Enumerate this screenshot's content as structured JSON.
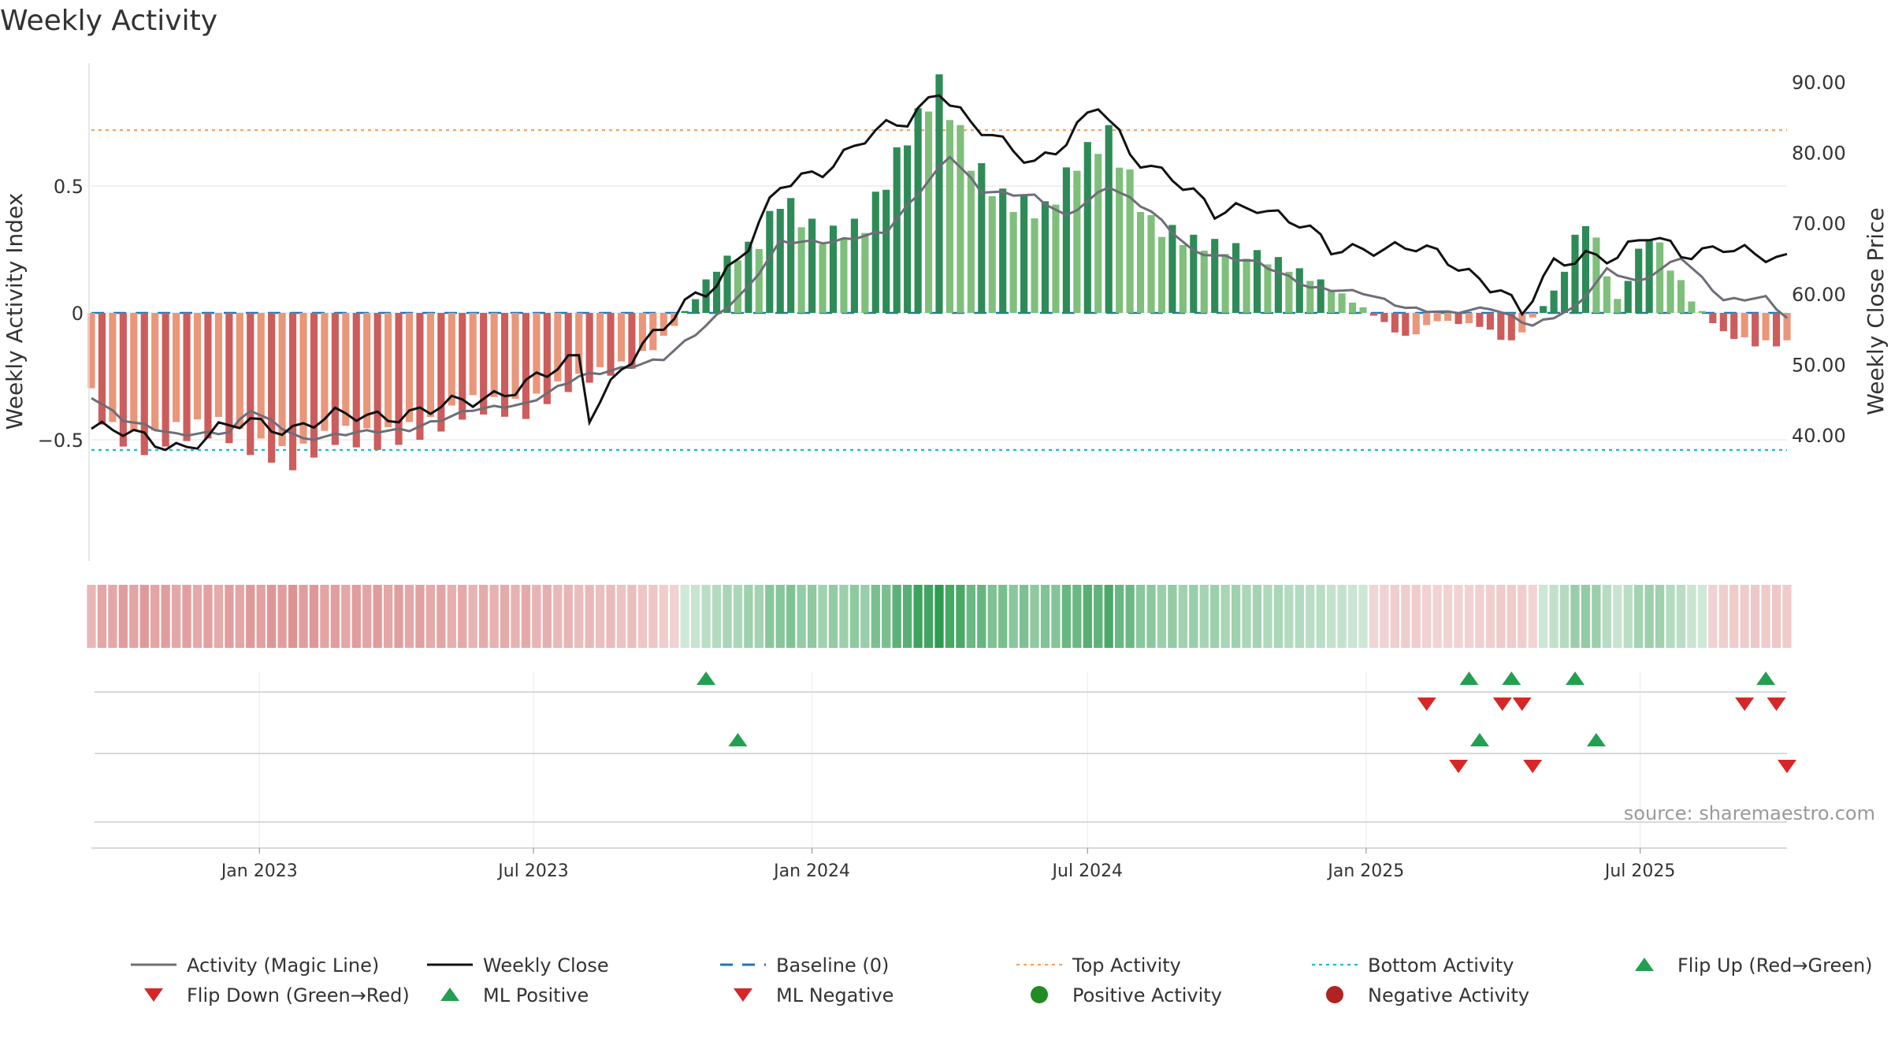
{
  "title": "Weekly Activity",
  "source": "source: sharemaestro.com",
  "colors": {
    "pos_dark": "#2e8b57",
    "pos_light": "#7fbf7b",
    "neg_dark": "#cd5c5c",
    "neg_light": "#e9967a",
    "magic_line": "#6e6e78",
    "close_line": "#111111",
    "baseline": "#1f77b4",
    "top_line": "#f4a460",
    "bottom_line": "#17becf",
    "marker_up": "#22a050",
    "marker_down": "#d62728",
    "pos_dot": "#228b22",
    "neg_dot": "#b22222"
  },
  "chart_data": {
    "type": "bar",
    "title": "Weekly Activity",
    "ylabel": "Weekly Activity Index",
    "y2label": "Weekly Close Price",
    "ylim": [
      -0.97,
      1.0
    ],
    "y2lim": [
      35.0,
      92.0
    ],
    "yticks": [
      {
        "v": 0.5,
        "label": "0.5"
      },
      {
        "v": 0,
        "label": "0"
      },
      {
        "v": -0.5,
        "label": "−0.5"
      }
    ],
    "y2ticks": [
      "90.00",
      "80.00",
      "70.00",
      "60.00",
      "50.00",
      "40.00"
    ],
    "x_start": "2022-09-12",
    "x_end": "2025-10-06",
    "xticks": [
      {
        "date": "2023-01-01",
        "label": "Jan 2023"
      },
      {
        "date": "2023-07-01",
        "label": "Jul 2023"
      },
      {
        "date": "2024-01-01",
        "label": "Jan 2024"
      },
      {
        "date": "2024-07-01",
        "label": "Jul 2024"
      },
      {
        "date": "2025-01-01",
        "label": "Jan 2025"
      },
      {
        "date": "2025-07-01",
        "label": "Jul 2025"
      }
    ],
    "top_activity": 0.72,
    "bottom_activity": -0.54,
    "series": [
      {
        "name": "Weekly Activity Index",
        "kind": "bar",
        "anchors": [
          [
            "2022-09-12",
            -0.33
          ],
          [
            "2022-09-26",
            -0.47
          ],
          [
            "2022-10-17",
            -0.52
          ],
          [
            "2022-11-07",
            -0.47
          ],
          [
            "2022-12-05",
            -0.45
          ],
          [
            "2022-12-26",
            -0.52
          ],
          [
            "2023-01-23",
            -0.58
          ],
          [
            "2023-02-20",
            -0.48
          ],
          [
            "2023-03-20",
            -0.5
          ],
          [
            "2023-04-24",
            -0.45
          ],
          [
            "2023-05-22",
            -0.36
          ],
          [
            "2023-06-26",
            -0.38
          ],
          [
            "2023-07-17",
            -0.3
          ],
          [
            "2023-08-07",
            -0.25
          ],
          [
            "2023-09-04",
            -0.2
          ],
          [
            "2023-09-25",
            -0.1
          ],
          [
            "2023-10-16",
            0.06
          ],
          [
            "2023-10-30",
            0.18
          ],
          [
            "2023-11-27",
            0.28
          ],
          [
            "2023-12-11",
            0.45
          ],
          [
            "2024-01-08",
            0.3
          ],
          [
            "2024-02-05",
            0.35
          ],
          [
            "2024-03-04",
            0.7
          ],
          [
            "2024-03-25",
            0.9
          ],
          [
            "2024-04-15",
            0.6
          ],
          [
            "2024-05-06",
            0.45
          ],
          [
            "2024-06-03",
            0.4
          ],
          [
            "2024-06-24",
            0.6
          ],
          [
            "2024-07-15",
            0.7
          ],
          [
            "2024-08-12",
            0.35
          ],
          [
            "2024-09-09",
            0.28
          ],
          [
            "2024-10-07",
            0.25
          ],
          [
            "2024-11-04",
            0.2
          ],
          [
            "2024-12-02",
            0.12
          ],
          [
            "2024-12-30",
            0.02
          ],
          [
            "2025-01-27",
            -0.1
          ],
          [
            "2025-02-17",
            -0.03
          ],
          [
            "2025-03-17",
            -0.05
          ],
          [
            "2025-04-07",
            -0.12
          ],
          [
            "2025-05-05",
            0.08
          ],
          [
            "2025-05-26",
            0.38
          ],
          [
            "2025-06-16",
            0.05
          ],
          [
            "2025-07-07",
            0.32
          ],
          [
            "2025-08-04",
            0.05
          ],
          [
            "2025-08-25",
            -0.08
          ],
          [
            "2025-09-15",
            -0.12
          ],
          [
            "2025-10-06",
            -0.12
          ]
        ]
      },
      {
        "name": "Activity (Magic Line)",
        "kind": "line",
        "anchors": [
          [
            "2022-09-12",
            -0.33
          ],
          [
            "2022-10-03",
            -0.42
          ],
          [
            "2022-11-07",
            -0.48
          ],
          [
            "2022-12-12",
            -0.47
          ],
          [
            "2022-12-26",
            -0.38
          ],
          [
            "2023-01-30",
            -0.5
          ],
          [
            "2023-03-06",
            -0.47
          ],
          [
            "2023-04-10",
            -0.46
          ],
          [
            "2023-05-22",
            -0.38
          ],
          [
            "2023-06-26",
            -0.36
          ],
          [
            "2023-07-31",
            -0.25
          ],
          [
            "2023-08-28",
            -0.22
          ],
          [
            "2023-09-25",
            -0.18
          ],
          [
            "2023-10-23",
            -0.05
          ],
          [
            "2023-11-20",
            0.1
          ],
          [
            "2023-12-11",
            0.28
          ],
          [
            "2024-01-15",
            0.28
          ],
          [
            "2024-02-19",
            0.32
          ],
          [
            "2024-04-01",
            0.62
          ],
          [
            "2024-04-22",
            0.48
          ],
          [
            "2024-05-27",
            0.46
          ],
          [
            "2024-06-17",
            0.38
          ],
          [
            "2024-07-15",
            0.5
          ],
          [
            "2024-08-12",
            0.4
          ],
          [
            "2024-09-09",
            0.24
          ],
          [
            "2024-10-21",
            0.2
          ],
          [
            "2024-11-25",
            0.1
          ],
          [
            "2024-12-30",
            0.08
          ],
          [
            "2025-01-27",
            0.02
          ],
          [
            "2025-02-24",
            0.0
          ],
          [
            "2025-03-24",
            0.02
          ],
          [
            "2025-04-21",
            -0.05
          ],
          [
            "2025-05-19",
            0.02
          ],
          [
            "2025-06-09",
            0.17
          ],
          [
            "2025-06-30",
            0.12
          ],
          [
            "2025-07-28",
            0.22
          ],
          [
            "2025-08-25",
            0.05
          ],
          [
            "2025-09-22",
            0.06
          ],
          [
            "2025-10-06",
            -0.02
          ]
        ]
      },
      {
        "name": "Weekly Close",
        "kind": "line",
        "axis": "right",
        "anchors": [
          [
            "2022-09-12",
            41.0
          ],
          [
            "2022-10-10",
            40.0
          ],
          [
            "2022-11-14",
            38.5
          ],
          [
            "2022-12-05",
            40.5
          ],
          [
            "2022-12-26",
            42.0
          ],
          [
            "2023-01-23",
            41.2
          ],
          [
            "2023-02-20",
            42.5
          ],
          [
            "2023-03-20",
            43.0
          ],
          [
            "2023-04-24",
            43.5
          ],
          [
            "2023-05-22",
            45.0
          ],
          [
            "2023-06-26",
            47.5
          ],
          [
            "2023-07-10",
            48.5
          ],
          [
            "2023-07-31",
            51.0
          ],
          [
            "2023-08-07",
            43.0
          ],
          [
            "2023-08-28",
            50.0
          ],
          [
            "2023-09-25",
            55.0
          ],
          [
            "2023-10-16",
            60.0
          ],
          [
            "2023-10-30",
            62.0
          ],
          [
            "2023-11-20",
            67.0
          ],
          [
            "2023-12-11",
            75.0
          ],
          [
            "2024-01-08",
            78.0
          ],
          [
            "2024-02-05",
            82.0
          ],
          [
            "2024-03-04",
            84.5
          ],
          [
            "2024-03-25",
            89.5
          ],
          [
            "2024-04-15",
            84.0
          ],
          [
            "2024-05-06",
            81.0
          ],
          [
            "2024-05-27",
            79.0
          ],
          [
            "2024-06-17",
            82.0
          ],
          [
            "2024-07-08",
            86.5
          ],
          [
            "2024-07-29",
            80.0
          ],
          [
            "2024-08-26",
            77.0
          ],
          [
            "2024-09-23",
            71.0
          ],
          [
            "2024-10-21",
            73.0
          ],
          [
            "2024-11-18",
            70.0
          ],
          [
            "2024-12-09",
            66.0
          ],
          [
            "2025-01-06",
            67.0
          ],
          [
            "2025-02-03",
            66.5
          ],
          [
            "2025-03-03",
            64.0
          ],
          [
            "2025-03-31",
            61.0
          ],
          [
            "2025-04-14",
            57.0
          ],
          [
            "2025-05-05",
            64.0
          ],
          [
            "2025-05-26",
            66.0
          ],
          [
            "2025-06-16",
            65.5
          ],
          [
            "2025-07-07",
            68.0
          ],
          [
            "2025-07-28",
            66.0
          ],
          [
            "2025-08-25",
            67.0
          ],
          [
            "2025-09-15",
            65.0
          ],
          [
            "2025-10-06",
            65.0
          ]
        ]
      }
    ],
    "flips_row1": {
      "up": [
        "2023-10-23",
        "2025-03-10",
        "2025-04-07",
        "2025-05-19",
        "2025-09-22"
      ],
      "down": [
        "2025-02-10",
        "2025-04-01",
        "2025-04-14",
        "2025-09-08",
        "2025-09-29"
      ]
    },
    "flips_row2": {
      "up": [
        "2023-11-13",
        "2025-03-17",
        "2025-06-02"
      ],
      "down": [
        "2025-03-03",
        "2025-04-21",
        "2025-10-06"
      ]
    },
    "legend": [
      {
        "label": "Activity (Magic Line)",
        "symbol": "line-solid",
        "color": "#6e6e78"
      },
      {
        "label": "Weekly Close",
        "symbol": "line-solid",
        "color": "#111111"
      },
      {
        "label": "Baseline (0)",
        "symbol": "line-dashed",
        "color": "#1f77b4"
      },
      {
        "label": "Top Activity",
        "symbol": "line-dotted",
        "color": "#f4a460"
      },
      {
        "label": "Bottom Activity",
        "symbol": "line-dotted",
        "color": "#17becf"
      },
      {
        "label": "Flip Up (Red→Green)",
        "symbol": "tri-up",
        "color": "#22a050"
      },
      {
        "label": "Flip Down (Green→Red)",
        "symbol": "tri-down",
        "color": "#d62728"
      },
      {
        "label": "ML Positive",
        "symbol": "tri-up",
        "color": "#22a050"
      },
      {
        "label": "ML Negative",
        "symbol": "tri-down",
        "color": "#d62728"
      },
      {
        "label": "Positive Activity",
        "symbol": "dot",
        "color": "#228b22"
      },
      {
        "label": "Negative Activity",
        "symbol": "dot",
        "color": "#b22222"
      }
    ]
  }
}
